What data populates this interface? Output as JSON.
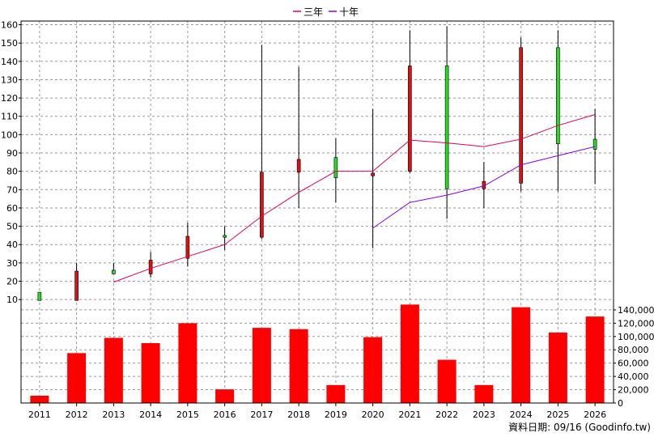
{
  "chart_data": {
    "type": "candlestick-with-volume-bars",
    "legend": [
      {
        "name": "三年",
        "color": "#e0005a"
      },
      {
        "name": "十年",
        "color": "#8a00e0"
      }
    ],
    "categories": [
      "2011",
      "2012",
      "2013",
      "2014",
      "2015",
      "2016",
      "2017",
      "2018",
      "2019",
      "2020",
      "2021",
      "2022",
      "2023",
      "2024",
      "2025",
      "2026"
    ],
    "price_axis": {
      "ticks": [
        10,
        20,
        30,
        40,
        50,
        60,
        70,
        80,
        90,
        100,
        110,
        120,
        130,
        140,
        150,
        160
      ],
      "range": [
        3,
        162
      ],
      "position": "left"
    },
    "volume_axis": {
      "tick_labels": [
        "0",
        "20,000",
        "40,000",
        "60,000",
        "80,000",
        "100,000",
        "120,000",
        "140,000"
      ],
      "ticks": [
        0,
        20000,
        40000,
        60000,
        80000,
        100000,
        120000,
        140000
      ],
      "range": [
        0,
        146000
      ],
      "position": "right"
    },
    "candles": [
      {
        "year": "2011",
        "open": 9.5,
        "close": 14,
        "high": 14,
        "low": 9.5,
        "color": "#22dd22"
      },
      {
        "year": "2012",
        "open": 25.5,
        "close": 9.5,
        "high": 30,
        "low": 9.5,
        "color": "#dd1111"
      },
      {
        "year": "2013",
        "open": 24,
        "close": 26,
        "high": 30,
        "low": 24,
        "color": "#22dd22"
      },
      {
        "year": "2014",
        "open": 31.5,
        "close": 24,
        "high": 36,
        "low": 22,
        "color": "#dd1111"
      },
      {
        "year": "2015",
        "open": 44.5,
        "close": 32.5,
        "high": 52,
        "low": 28,
        "color": "#dd1111"
      },
      {
        "year": "2016",
        "open": 44,
        "close": 45,
        "high": 50,
        "low": 37,
        "color": "#22dd22"
      },
      {
        "year": "2017",
        "open": 79.5,
        "close": 44,
        "high": 149,
        "low": 43,
        "color": "#dd1111"
      },
      {
        "year": "2018",
        "open": 86.5,
        "close": 79.5,
        "high": 137,
        "low": 60,
        "color": "#dd1111"
      },
      {
        "year": "2019",
        "open": 76.5,
        "close": 87.5,
        "high": 98,
        "low": 63,
        "color": "#22dd22"
      },
      {
        "year": "2020",
        "open": 79,
        "close": 77.5,
        "high": 114,
        "low": 38,
        "color": "#dd1111"
      },
      {
        "year": "2021",
        "open": 137.5,
        "close": 80,
        "high": 157,
        "low": 79,
        "color": "#dd1111"
      },
      {
        "year": "2022",
        "open": 70.5,
        "close": 137.5,
        "high": 159,
        "low": 54,
        "color": "#22dd22"
      },
      {
        "year": "2023",
        "open": 74.5,
        "close": 70.5,
        "high": 85,
        "low": 60,
        "color": "#dd1111"
      },
      {
        "year": "2024",
        "open": 147.5,
        "close": 73.5,
        "high": 153,
        "low": 69,
        "color": "#dd1111"
      },
      {
        "year": "2025",
        "open": 95,
        "close": 147.5,
        "high": 157,
        "low": 69,
        "color": "#22dd22"
      },
      {
        "year": "2026",
        "open": 92,
        "close": 97.5,
        "high": 114,
        "low": 73,
        "color": "#22dd22"
      }
    ],
    "series": [
      {
        "name": "三年",
        "color": "#e0005a",
        "values": [
          null,
          null,
          19.5,
          27,
          33.5,
          40,
          55.5,
          68.5,
          80,
          80,
          97,
          95.5,
          93.5,
          97.5,
          105,
          111
        ]
      },
      {
        "name": "十年",
        "color": "#8a00e0",
        "values": [
          null,
          null,
          null,
          null,
          null,
          null,
          null,
          null,
          null,
          49,
          63,
          67,
          72,
          83.5,
          88.5,
          93.5
        ]
      }
    ],
    "volume": [
      11000,
      75000,
      98000,
      90000,
      120000,
      20500,
      113000,
      111000,
      27000,
      99000,
      148000,
      65000,
      27000,
      144000,
      106000,
      130000
    ],
    "volume_color": "#ff0000",
    "grid": true
  },
  "footer": {
    "date_text": "資料日期: 09/16  (Goodinfo.tw)"
  }
}
